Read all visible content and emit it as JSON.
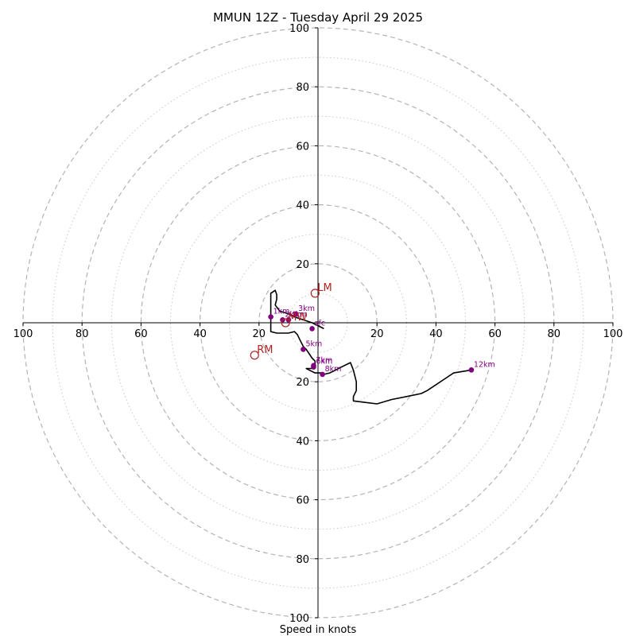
{
  "chart_data": {
    "type": "hodograph",
    "title": "MMUN 12Z - Tuesday April 29 2025",
    "xlabel": "Speed in knots",
    "rings": [
      20,
      40,
      60,
      80,
      100
    ],
    "minor_rings": [
      10,
      30,
      50,
      70,
      90
    ],
    "x_ticks": [
      {
        "value": -100,
        "label": "100"
      },
      {
        "value": -80,
        "label": "80"
      },
      {
        "value": -60,
        "label": "60"
      },
      {
        "value": -40,
        "label": "40"
      },
      {
        "value": -20,
        "label": "20"
      },
      {
        "value": 20,
        "label": "20"
      },
      {
        "value": 40,
        "label": "40"
      },
      {
        "value": 60,
        "label": "60"
      },
      {
        "value": 80,
        "label": "80"
      },
      {
        "value": 100,
        "label": "100"
      }
    ],
    "y_ticks": [
      {
        "value": 100,
        "label": "100"
      },
      {
        "value": 80,
        "label": "80"
      },
      {
        "value": 60,
        "label": "60"
      },
      {
        "value": 40,
        "label": "40"
      },
      {
        "value": 20,
        "label": "20"
      },
      {
        "value": -20,
        "label": "20"
      },
      {
        "value": -40,
        "label": "40"
      },
      {
        "value": -60,
        "label": "60"
      },
      {
        "value": -80,
        "label": "80"
      },
      {
        "value": -100,
        "label": "100"
      }
    ],
    "xlim": [
      -100,
      100
    ],
    "ylim": [
      -100,
      100
    ],
    "line_color": "#000000",
    "level_color": "#800080",
    "motion_color": "#b22222",
    "trace": [
      [
        2,
        -2
      ],
      [
        -2,
        0
      ],
      [
        -5,
        1
      ],
      [
        -8,
        2
      ],
      [
        -10,
        3
      ],
      [
        -13,
        4
      ],
      [
        -14.5,
        6
      ],
      [
        -14,
        8
      ],
      [
        -14,
        9.5
      ],
      [
        -14.5,
        11
      ],
      [
        -16,
        10
      ],
      [
        -16,
        8
      ],
      [
        -16,
        6
      ],
      [
        -16,
        3
      ],
      [
        -16,
        1
      ],
      [
        -16,
        -1
      ],
      [
        -16,
        -3
      ],
      [
        -14,
        -3.5
      ],
      [
        -10,
        -3.5
      ],
      [
        -8,
        -3
      ],
      [
        -7,
        -4
      ],
      [
        -6,
        -6
      ],
      [
        -5,
        -8
      ],
      [
        -4,
        -9
      ],
      [
        -3,
        -10.5
      ],
      [
        -2,
        -12
      ],
      [
        -1,
        -13
      ],
      [
        -1,
        -14
      ],
      [
        -1,
        -15
      ],
      [
        -2,
        -15.5
      ],
      [
        -4,
        -15.5
      ],
      [
        -3,
        -16
      ],
      [
        -1,
        -17
      ],
      [
        1,
        -17
      ],
      [
        2,
        -17.5
      ],
      [
        4,
        -17
      ],
      [
        6,
        -16
      ],
      [
        8,
        -15
      ],
      [
        10,
        -14
      ],
      [
        11,
        -13.5
      ],
      [
        12,
        -16
      ],
      [
        13,
        -20
      ],
      [
        13,
        -23
      ],
      [
        12,
        -25
      ],
      [
        12,
        -26.5
      ],
      [
        16,
        -27
      ],
      [
        20,
        -27.5
      ],
      [
        25,
        -26
      ],
      [
        30,
        -25
      ],
      [
        35,
        -24
      ],
      [
        37,
        -23
      ],
      [
        40,
        -21
      ],
      [
        43,
        -19
      ],
      [
        46,
        -17
      ],
      [
        52,
        -16
      ]
    ],
    "levels": [
      {
        "label": "sfc",
        "u": -2,
        "v": -2
      },
      {
        "label": "1km",
        "u": -16,
        "v": 2
      },
      {
        "label": "2km",
        "u": -12,
        "v": 1
      },
      {
        "label": "3km",
        "u": -7.5,
        "v": 3
      },
      {
        "label": "4km",
        "u": -10,
        "v": 1
      },
      {
        "label": "5km",
        "u": -5,
        "v": -9
      },
      {
        "label": "6km",
        "u": -1.5,
        "v": -15
      },
      {
        "label": "7km",
        "u": -1.5,
        "v": -14.5
      },
      {
        "label": "8km",
        "u": 1.5,
        "v": -17.5
      },
      {
        "label": "12km",
        "u": 52,
        "v": -16
      }
    ],
    "storm_motions": [
      {
        "label": "LM",
        "u": -1,
        "v": 10
      },
      {
        "label": "RM",
        "u": -21.5,
        "v": -11
      },
      {
        "label": "MW",
        "u": -11,
        "v": 0
      }
    ]
  }
}
